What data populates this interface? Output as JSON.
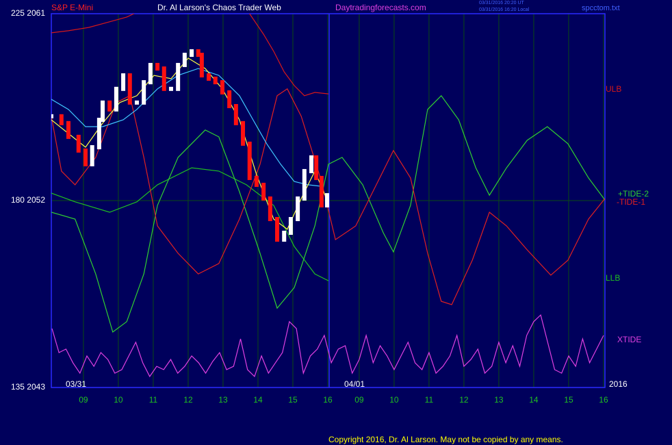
{
  "chart_data": {
    "type": "line",
    "instrument": "S&P E-Mini",
    "title": "Dr. Al Larson's Chaos Trader Web",
    "website": "Daytradingforecasts.com",
    "timestamps": [
      "03/31/2016 20:20 UT",
      "03/31/2016 16:20 Local"
    ],
    "file": "spcctom.txt",
    "copyright": "Copyright 2016, Dr. Al Larson. May not be copied by any means.",
    "annotations": [
      "03/31",
      "04/01",
      "2016"
    ],
    "xlim": [
      -0.92,
      14.94
    ],
    "xticks": [
      {
        "value": 0,
        "label": "09"
      },
      {
        "value": 1,
        "label": "10"
      },
      {
        "value": 2,
        "label": "11"
      },
      {
        "value": 3,
        "label": "12"
      },
      {
        "value": 4,
        "label": "13"
      },
      {
        "value": 5,
        "label": "14"
      },
      {
        "value": 6,
        "label": "15"
      },
      {
        "value": 7,
        "label": "16"
      },
      {
        "value": 7.9,
        "label": "09"
      },
      {
        "value": 8.9,
        "label": "10"
      },
      {
        "value": 9.9,
        "label": "11"
      },
      {
        "value": 10.9,
        "label": "12"
      },
      {
        "value": 11.9,
        "label": "13"
      },
      {
        "value": 12.9,
        "label": "14"
      },
      {
        "value": 13.9,
        "label": "15"
      },
      {
        "value": 14.9,
        "label": "16"
      }
    ],
    "ylim": [
      2043,
      2061
    ],
    "yticks": [
      {
        "value": 2043,
        "label": "135 2043"
      },
      {
        "value": 2052,
        "label": "180 2052"
      },
      {
        "value": 2061,
        "label": "225 2061"
      }
    ],
    "grid": true,
    "price": {
      "up_color": "#ffffff",
      "down_color": "#ff1010",
      "x": [
        -0.92,
        -0.63,
        -0.43,
        -0.14,
        0.06,
        0.25,
        0.45,
        0.55,
        0.75,
        0.94,
        1.14,
        1.33,
        1.53,
        1.73,
        1.92,
        2.12,
        2.31,
        2.51,
        2.71,
        2.9,
        3.1,
        3.29,
        3.39,
        3.59,
        3.78,
        3.98,
        4.18,
        4.37,
        4.57,
        4.76,
        4.96,
        5.16,
        5.35,
        5.55,
        5.75,
        5.94,
        6.14,
        6.33,
        6.53,
        6.67,
        6.82,
        6.98
      ],
      "values": [
        2056.06,
        2055.73,
        2055.07,
        2054.41,
        2053.75,
        2054.57,
        2055.89,
        2056.72,
        2056.39,
        2057.38,
        2058.03,
        2056.72,
        2056.72,
        2057.7,
        2058.53,
        2058.36,
        2057.38,
        2057.38,
        2058.53,
        2059.02,
        2059.19,
        2059.02,
        2058.03,
        2057.87,
        2057.7,
        2057.21,
        2056.55,
        2055.73,
        2054.74,
        2053.09,
        2052.76,
        2052.1,
        2051.11,
        2050.12,
        2050.45,
        2051.11,
        2052.1,
        2053.42,
        2054.08,
        2053.09,
        2051.77,
        2052.26
      ]
    },
    "series": [
      {
        "name": "ULB",
        "color": "#d81818",
        "x": [
          -0.92,
          -0.43,
          0.16,
          0.75,
          1.24,
          1.53,
          1.82,
          3.1,
          4.47,
          4.76,
          5.16,
          5.45,
          5.75,
          6.04,
          6.33,
          6.63,
          7.02
        ],
        "values": [
          2060.08,
          2060.18,
          2060.34,
          2060.61,
          2060.84,
          2061.07,
          2061.5,
          null,
          2061.5,
          2061.0,
          2060.01,
          2059.19,
          2058.2,
          2057.54,
          2057.05,
          2057.21,
          2057.14
        ]
      },
      {
        "name": "LLB",
        "color": "#20c020",
        "x": [
          -0.92,
          -0.24,
          0.75,
          1.53,
          2.12,
          3.1,
          3.88,
          4.67,
          5.45,
          6.04,
          6.63,
          7.02
        ],
        "values": [
          2052.36,
          2051.94,
          2051.44,
          2051.94,
          2052.76,
          2053.58,
          2053.42,
          2052.76,
          2051.77,
          2049.79,
          2048.47,
          2048.14
        ]
      },
      {
        "name": "+TIDE-2",
        "color": "#30d030",
        "x": [
          -0.92,
          -0.24,
          0.35,
          0.84,
          1.24,
          1.73,
          2.12,
          2.71,
          3.49,
          3.88,
          4.47,
          5.06,
          5.55,
          6.04,
          6.63,
          7.02,
          7.41,
          8.0,
          8.59,
          8.88,
          9.37,
          9.86,
          10.25,
          10.75,
          11.24,
          11.63,
          12.12,
          12.71,
          13.29,
          13.88,
          14.47,
          14.94
        ],
        "values": [
          2051.44,
          2051.11,
          2048.47,
          2045.67,
          2046.17,
          2048.47,
          2051.77,
          2054.08,
          2055.4,
          2055.07,
          2052.43,
          2049.46,
          2046.82,
          2047.81,
          2050.78,
          2053.75,
          2054.08,
          2052.76,
          2050.45,
          2049.53,
          2051.77,
          2056.39,
          2057.05,
          2055.89,
          2053.58,
          2052.26,
          2053.58,
          2054.9,
          2055.56,
          2054.74,
          2053.09,
          2052.03
        ]
      },
      {
        "name": "-TIDE-1",
        "color": "#e02020",
        "x": [
          -0.92,
          -0.63,
          -0.24,
          0.35,
          0.94,
          1.33,
          1.73,
          2.12,
          2.71,
          3.29,
          3.88,
          4.47,
          5.06,
          5.55,
          5.84,
          6.24,
          6.82,
          7.22,
          7.8,
          8.39,
          8.88,
          9.37,
          9.86,
          10.25,
          10.55,
          11.14,
          11.63,
          12.12,
          12.71,
          13.39,
          13.88,
          14.47,
          14.94
        ],
        "values": [
          2056.06,
          2053.42,
          2052.76,
          2054.08,
          2056.72,
          2057.05,
          2054.08,
          2050.78,
          2049.46,
          2048.47,
          2048.97,
          2051.11,
          2053.75,
          2057.05,
          2057.38,
          2056.06,
          2052.92,
          2050.12,
          2050.78,
          2052.76,
          2054.41,
          2053.09,
          2049.46,
          2047.15,
          2046.99,
          2049.13,
          2051.44,
          2050.78,
          2049.63,
          2048.41,
          2049.13,
          2051.11,
          2052.1
        ]
      },
      {
        "name": "XTIDE",
        "color": "#e040e0",
        "x": [
          -0.9,
          -0.7,
          -0.5,
          -0.3,
          -0.1,
          0.1,
          0.3,
          0.5,
          0.7,
          0.9,
          1.1,
          1.3,
          1.5,
          1.7,
          1.9,
          2.1,
          2.3,
          2.5,
          2.7,
          2.9,
          3.1,
          3.3,
          3.5,
          3.7,
          3.9,
          4.1,
          4.3,
          4.5,
          4.7,
          4.9,
          5.1,
          5.3,
          5.5,
          5.7,
          5.9,
          6.1,
          6.3,
          6.5,
          6.7,
          6.9,
          7.1,
          7.3,
          7.5,
          7.7,
          7.9,
          8.1,
          8.3,
          8.5,
          8.7,
          8.9,
          9.1,
          9.3,
          9.5,
          9.7,
          9.9,
          10.1,
          10.3,
          10.5,
          10.7,
          10.9,
          11.1,
          11.3,
          11.5,
          11.7,
          11.9,
          12.1,
          12.3,
          12.5,
          12.7,
          12.9,
          13.1,
          13.3,
          13.5,
          13.7,
          13.9,
          14.1,
          14.3,
          14.5,
          14.7,
          14.9
        ],
        "values": [
          2045.84,
          2044.68,
          2044.85,
          2044.19,
          2043.69,
          2044.52,
          2044.02,
          2044.68,
          2044.35,
          2043.69,
          2043.86,
          2044.52,
          2045.18,
          2044.19,
          2043.53,
          2044.02,
          2043.86,
          2044.35,
          2043.69,
          2044.02,
          2044.52,
          2044.19,
          2043.69,
          2044.25,
          2044.68,
          2043.86,
          2044.02,
          2045.34,
          2043.86,
          2043.53,
          2044.52,
          2043.69,
          2044.19,
          2044.68,
          2046.17,
          2045.84,
          2043.69,
          2044.52,
          2044.85,
          2045.51,
          2044.19,
          2044.85,
          2045.01,
          2043.69,
          2044.35,
          2045.51,
          2044.19,
          2045.01,
          2044.52,
          2043.86,
          2044.52,
          2045.18,
          2044.19,
          2043.86,
          2044.68,
          2043.69,
          2044.02,
          2044.52,
          2045.51,
          2044.02,
          2044.35,
          2044.85,
          2043.69,
          2044.02,
          2045.18,
          2044.19,
          2045.01,
          2044.02,
          2045.51,
          2046.17,
          2046.49,
          2045.18,
          2043.86,
          2043.69,
          2044.52,
          2044.02,
          2045.34,
          2044.19,
          2044.85,
          2045.51
        ]
      },
      {
        "color": "#40c8ff",
        "x": [
          -0.92,
          -0.43,
          0.06,
          0.55,
          1.14,
          1.53,
          2.12,
          2.71,
          3.29,
          3.88,
          4.47,
          4.86,
          5.25,
          5.65,
          6.04,
          6.43,
          6.82
        ],
        "values": [
          2056.88,
          2056.39,
          2055.56,
          2055.56,
          2055.89,
          2056.39,
          2057.38,
          2058.03,
          2058.36,
          2058.03,
          2057.05,
          2055.89,
          2054.74,
          2053.75,
          2052.92,
          2052.76,
          2052.69
        ]
      },
      {
        "color": "#ffff40",
        "x": [
          -0.92,
          -0.43,
          0.06,
          0.55,
          1.04,
          1.53,
          2.02,
          2.51,
          3.0,
          3.49,
          3.98,
          4.47,
          4.96,
          5.45,
          5.84,
          6.24,
          6.63,
          6.92
        ],
        "values": [
          2055.89,
          2055.23,
          2054.57,
          2055.73,
          2056.72,
          2057.05,
          2058.03,
          2057.87,
          2058.86,
          2058.36,
          2057.38,
          2055.89,
          2053.25,
          2051.11,
          2050.62,
          2052.1,
          2053.42,
          2052.26
        ]
      }
    ]
  }
}
